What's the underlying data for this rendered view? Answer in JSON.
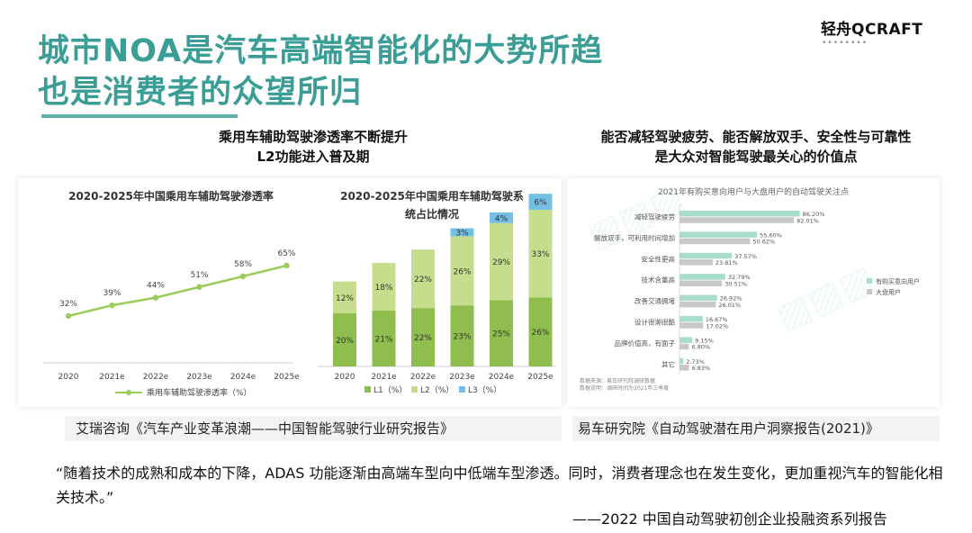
{
  "header": {
    "title_line1": "城市NOA是汽车高端智能化的大势所趋",
    "title_line2": "也是消费者的众望所归",
    "logo_zh": "轻舟",
    "logo_en": "QCRAFT",
    "colors": {
      "title": "#3a9e96",
      "accent": "#9ccc5a",
      "dark_green": "#8fbe4f",
      "light_green": "#c6dd8d",
      "blue": "#74bfe3",
      "teal_bar": "#a8dccb",
      "gray_bar": "#c8c8c8"
    }
  },
  "left_section": {
    "heading_line1": "乘用车辅助驾驶渗透率不断提升",
    "heading_line2": "L2功能进入普及期",
    "source": "艾瑞咨询《汽车产业变革浪潮——中国智能驾驶行业研究报告》"
  },
  "right_section": {
    "heading_line1": "能否减轻驾驶疲劳、能否解放双手、安全性与可靠性",
    "heading_line2": "是大众对智能驾驶最关心的价值点",
    "source": "易车研究院《自动驾驶潜在用户洞察报告(2021)》"
  },
  "chart_data": [
    {
      "type": "line",
      "title": "2020-2025年中国乘用车辅助驾驶渗透率",
      "categories": [
        "2020",
        "2021e",
        "2022e",
        "2023e",
        "2024e",
        "2025e"
      ],
      "series": [
        {
          "name": "乘用车辅助驾驶渗透率（%）",
          "values": [
            32,
            39,
            44,
            51,
            58,
            65
          ],
          "labels": [
            "32%",
            "39%",
            "44%",
            "51%",
            "58%",
            "65%"
          ]
        }
      ],
      "ylim": [
        0,
        100
      ],
      "legend": "bottom",
      "grid": false
    },
    {
      "type": "bar",
      "stacked": true,
      "title_line1": "2020-2025年中国乘用车辅助驾驶系",
      "title_line2": "统占比情况",
      "categories": [
        "2020",
        "2021e",
        "2022e",
        "2023e",
        "2024e",
        "2025e"
      ],
      "series": [
        {
          "name": "L1（%）",
          "values": [
            20,
            21,
            22,
            23,
            25,
            26
          ],
          "labels": [
            "20%",
            "21%",
            "22%",
            "23%",
            "25%",
            "26%"
          ],
          "color": "#8fbe4f"
        },
        {
          "name": "L2（%）",
          "values": [
            12,
            18,
            22,
            26,
            29,
            33
          ],
          "labels": [
            "12%",
            "18%",
            "22%",
            "26%",
            "29%",
            "33%"
          ],
          "color": "#c6dd8d"
        },
        {
          "name": "L3（%）",
          "values": [
            0,
            0,
            0,
            3,
            4,
            6
          ],
          "labels": [
            "",
            "",
            "",
            "3%",
            "4%",
            "6%"
          ],
          "color": "#74bfe3"
        }
      ],
      "ylim": [
        0,
        70
      ],
      "legend": "bottom",
      "grid": false
    },
    {
      "type": "bar",
      "orientation": "horizontal",
      "title": "2021年有购买意向用户与大盘用户的自动驾驶关注点",
      "categories": [
        "减轻驾驶疲劳",
        "解放双手，可利用时间增加",
        "安全性更高",
        "技术含量高",
        "改善交通拥堵",
        "设计很潮很酷",
        "品牌价值高，有面子",
        "其它"
      ],
      "series": [
        {
          "name": "有购买意向用户",
          "values": [
            86.2,
            55.6,
            37.57,
            32.79,
            26.92,
            16.67,
            9.15,
            2.73
          ],
          "labels": [
            "86.20%",
            "55.60%",
            "37.57%",
            "32.79%",
            "26.92%",
            "16.67%",
            "9.15%",
            "2.73%"
          ],
          "color": "#a8dccb"
        },
        {
          "name": "大盘用户",
          "values": [
            82.01,
            50.62,
            23.81,
            30.51,
            26.01,
            17.02,
            6.8,
            6.83
          ],
          "labels": [
            "82.01%",
            "50.62%",
            "23.81%",
            "30.51%",
            "26.01%",
            "17.02%",
            "6.80%",
            "6.83%"
          ],
          "color": "#c8c8c8"
        }
      ],
      "xlim": [
        0,
        100
      ],
      "legend": "right",
      "notes": [
        "数据来源：易车研究院调研数据",
        "数据说明：调研时间为2021年三季度"
      ]
    }
  ],
  "footer": {
    "quote": "“随着技术的成熟和成本的下降，ADAS 功能逐渐由高端车型向中低端车型渗透。同时，消费者理念也在发生变化，更加重视汽车的智能化相关技术。”",
    "attribution": "——2022 中国自动驾驶初创企业投融资系列报告"
  }
}
